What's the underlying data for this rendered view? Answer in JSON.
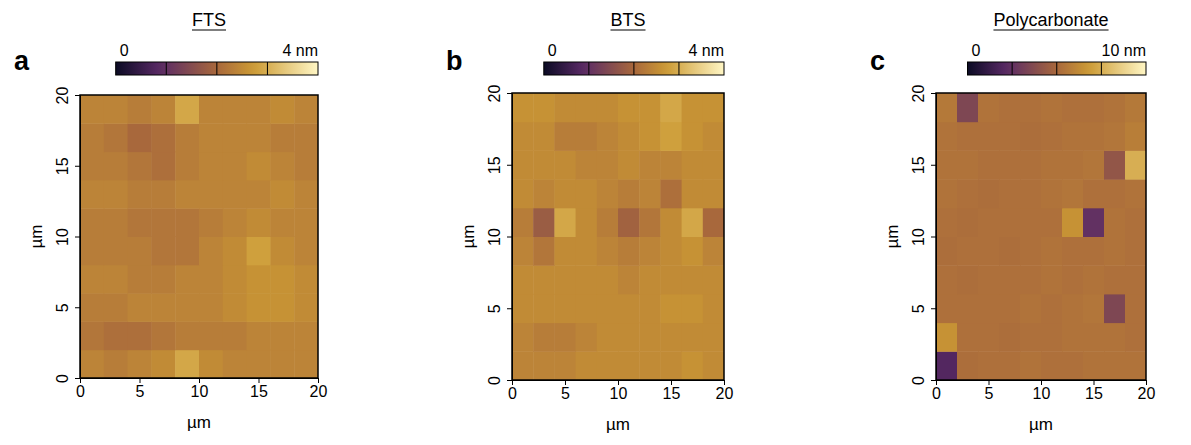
{
  "chart_data": [
    {
      "type": "heatmap",
      "panel_label": "a",
      "title": "FTS",
      "x_label": "µm",
      "y_label": "µm",
      "xlim": [
        0,
        20
      ],
      "xticks": [
        0,
        5,
        10,
        15,
        20
      ],
      "ylim": [
        0,
        20
      ],
      "yticks": [
        0,
        5,
        10,
        15,
        20
      ],
      "x_bins": [
        0,
        2,
        4,
        6,
        8,
        10,
        12,
        14,
        16,
        18,
        20
      ],
      "y_bins": [
        0,
        2,
        4,
        6,
        8,
        10,
        12,
        14,
        16,
        18,
        20
      ],
      "z": [
        [
          2.4,
          2.3,
          2.4,
          2.5,
          2.9,
          2.5,
          2.4,
          2.4,
          2.4,
          2.4
        ],
        [
          2.2,
          2.1,
          2.1,
          2.2,
          2.3,
          2.3,
          2.3,
          2.4,
          2.4,
          2.4
        ],
        [
          2.3,
          2.3,
          2.4,
          2.4,
          2.4,
          2.4,
          2.5,
          2.6,
          2.6,
          2.5
        ],
        [
          2.4,
          2.4,
          2.3,
          2.3,
          2.4,
          2.4,
          2.5,
          2.6,
          2.6,
          2.5
        ],
        [
          2.3,
          2.3,
          2.3,
          2.2,
          2.2,
          2.4,
          2.5,
          2.8,
          2.5,
          2.4
        ],
        [
          2.3,
          2.3,
          2.2,
          2.2,
          2.2,
          2.3,
          2.4,
          2.5,
          2.4,
          2.4
        ],
        [
          2.4,
          2.4,
          2.3,
          2.3,
          2.4,
          2.4,
          2.4,
          2.4,
          2.5,
          2.4
        ],
        [
          2.3,
          2.3,
          2.2,
          2.1,
          2.3,
          2.4,
          2.4,
          2.5,
          2.4,
          2.3
        ],
        [
          2.3,
          2.2,
          2.0,
          2.1,
          2.3,
          2.4,
          2.4,
          2.4,
          2.3,
          2.3
        ],
        [
          2.4,
          2.4,
          2.3,
          2.4,
          2.9,
          2.4,
          2.4,
          2.4,
          2.5,
          2.4
        ]
      ],
      "colorbar_range": [
        0,
        4
      ],
      "colorbar_ticks": [
        1,
        2,
        3
      ],
      "colorbar_labels": [
        {
          "value": 0,
          "label": "0"
        },
        {
          "value": 4,
          "label": "4 nm"
        }
      ]
    },
    {
      "type": "heatmap",
      "panel_label": "b",
      "title": "BTS",
      "x_label": "µm",
      "y_label": "µm",
      "xlim": [
        0,
        20
      ],
      "xticks": [
        0,
        5,
        10,
        15,
        20
      ],
      "ylim": [
        0,
        20
      ],
      "yticks": [
        0,
        5,
        10,
        15,
        20
      ],
      "x_bins": [
        0,
        2,
        4,
        6,
        8,
        10,
        12,
        14,
        16,
        18,
        20
      ],
      "y_bins": [
        0,
        2,
        4,
        6,
        8,
        10,
        12,
        14,
        16,
        18,
        20
      ],
      "z": [
        [
          2.4,
          2.4,
          2.4,
          2.5,
          2.5,
          2.5,
          2.5,
          2.5,
          2.6,
          2.5
        ],
        [
          2.4,
          2.3,
          2.3,
          2.4,
          2.5,
          2.5,
          2.5,
          2.5,
          2.5,
          2.5
        ],
        [
          2.5,
          2.5,
          2.5,
          2.5,
          2.5,
          2.5,
          2.5,
          2.6,
          2.6,
          2.5
        ],
        [
          2.5,
          2.5,
          2.5,
          2.5,
          2.5,
          2.4,
          2.5,
          2.5,
          2.5,
          2.5
        ],
        [
          2.4,
          2.2,
          2.5,
          2.5,
          2.4,
          2.3,
          2.4,
          2.5,
          2.6,
          2.4
        ],
        [
          2.3,
          1.8,
          2.9,
          2.5,
          2.3,
          1.9,
          2.2,
          2.5,
          2.9,
          2.0
        ],
        [
          2.5,
          2.4,
          2.5,
          2.5,
          2.4,
          2.3,
          2.4,
          2.1,
          2.5,
          2.5
        ],
        [
          2.5,
          2.5,
          2.5,
          2.4,
          2.4,
          2.5,
          2.4,
          2.4,
          2.5,
          2.5
        ],
        [
          2.5,
          2.5,
          2.3,
          2.3,
          2.4,
          2.5,
          2.6,
          2.8,
          2.6,
          2.5
        ],
        [
          2.6,
          2.6,
          2.5,
          2.5,
          2.5,
          2.6,
          2.6,
          2.9,
          2.6,
          2.6
        ]
      ],
      "colorbar_range": [
        0,
        4
      ],
      "colorbar_ticks": [
        1,
        2,
        3
      ],
      "colorbar_labels": [
        {
          "value": 0,
          "label": "0"
        },
        {
          "value": 4,
          "label": "4 nm"
        }
      ]
    },
    {
      "type": "heatmap",
      "panel_label": "c",
      "title": "Polycarbonate",
      "x_label": "µm",
      "y_label": "µm",
      "xlim": [
        0,
        20
      ],
      "xticks": [
        0,
        5,
        10,
        15,
        20
      ],
      "ylim": [
        0,
        20
      ],
      "yticks": [
        0,
        5,
        10,
        15,
        20
      ],
      "x_bins": [
        0,
        2,
        4,
        6,
        8,
        10,
        12,
        14,
        16,
        18,
        20
      ],
      "y_bins": [
        0,
        2,
        4,
        6,
        8,
        10,
        12,
        14,
        16,
        18,
        20
      ],
      "z": [
        [
          2.0,
          5.2,
          5.3,
          5.3,
          5.4,
          5.3,
          5.3,
          5.4,
          5.4,
          5.4
        ],
        [
          6.5,
          5.3,
          5.3,
          5.2,
          5.3,
          5.3,
          5.4,
          5.4,
          5.4,
          5.3
        ],
        [
          5.3,
          5.3,
          5.3,
          5.3,
          5.4,
          5.3,
          5.4,
          5.5,
          3.5,
          5.3
        ],
        [
          5.3,
          5.2,
          5.3,
          5.3,
          5.3,
          5.4,
          5.3,
          5.4,
          5.3,
          5.3
        ],
        [
          5.2,
          5.3,
          5.3,
          5.2,
          5.3,
          5.4,
          5.3,
          5.3,
          5.4,
          5.3
        ],
        [
          5.3,
          5.2,
          5.3,
          5.3,
          5.3,
          5.3,
          6.5,
          2.5,
          5.4,
          5.3
        ],
        [
          5.4,
          5.3,
          5.2,
          5.3,
          5.3,
          5.4,
          5.5,
          5.3,
          5.3,
          5.4
        ],
        [
          5.4,
          5.4,
          5.3,
          5.3,
          5.3,
          5.4,
          5.4,
          5.5,
          4.2,
          7.5
        ],
        [
          5.4,
          5.3,
          5.3,
          5.3,
          5.2,
          5.3,
          5.4,
          5.4,
          5.5,
          5.8
        ],
        [
          5.6,
          3.5,
          5.4,
          5.3,
          5.3,
          5.4,
          5.3,
          5.3,
          5.4,
          5.6
        ]
      ],
      "colorbar_range": [
        0,
        10
      ],
      "colorbar_ticks": [
        2.5,
        5,
        7.5
      ],
      "colorbar_labels": [
        {
          "value": 0,
          "label": "0"
        },
        {
          "value": 10,
          "label": "10 nm"
        }
      ]
    }
  ]
}
